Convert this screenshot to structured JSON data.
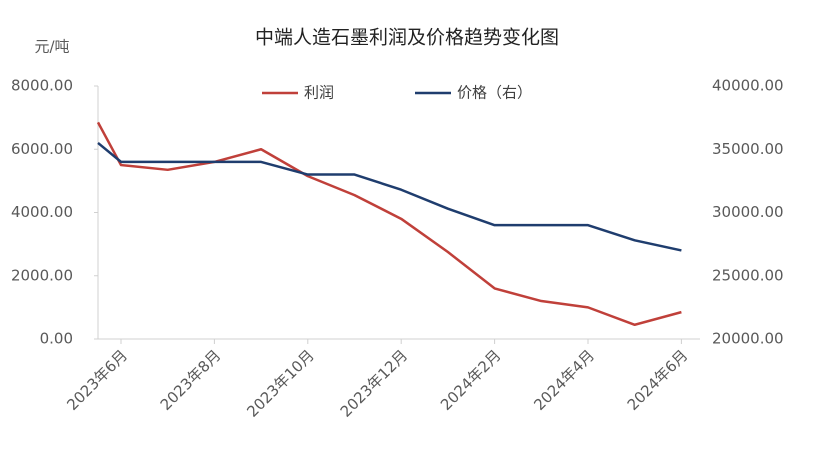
{
  "chart_data": {
    "type": "line",
    "title": "中端人造石墨利润及价格趋势变化图",
    "y_label": "元/吨",
    "categories": [
      null,
      "2023年6月",
      null,
      "2023年8月",
      null,
      "2023年10月",
      null,
      "2023年12月",
      null,
      "2024年2月",
      null,
      "2024年4月",
      null,
      "2024年6月"
    ],
    "series": [
      {
        "name": "利润",
        "color": "#c0403a",
        "values": [
          6850,
          5500,
          5350,
          5600,
          6000,
          5150,
          4550,
          3800,
          2750,
          1600,
          1200,
          1000,
          450,
          850
        ]
      },
      {
        "name": "价格（右）",
        "color": "#1f3d6e",
        "axis": "y2",
        "values": [
          35500,
          34000,
          34000,
          34000,
          34000,
          33000,
          33000,
          31800,
          30300,
          29000,
          29000,
          29000,
          27800,
          27000
        ]
      }
    ],
    "ylim": [
      0,
      8000
    ],
    "yticks": [
      {
        "value": 0,
        "label": "0.00"
      },
      {
        "value": 2000,
        "label": "2000.00"
      },
      {
        "value": 4000,
        "label": "4000.00"
      },
      {
        "value": 6000,
        "label": "6000.00"
      },
      {
        "value": 8000,
        "label": "8000.00"
      }
    ],
    "y2lim": [
      20000,
      40000
    ],
    "y2ticks": [
      {
        "value": 20000,
        "label": "20000.00"
      },
      {
        "value": 25000,
        "label": "25000.00"
      },
      {
        "value": 30000,
        "label": "30000.00"
      },
      {
        "value": 35000,
        "label": "35000.00"
      },
      {
        "value": 40000,
        "label": "40000.00"
      }
    ],
    "grid": false,
    "legend": "top"
  }
}
